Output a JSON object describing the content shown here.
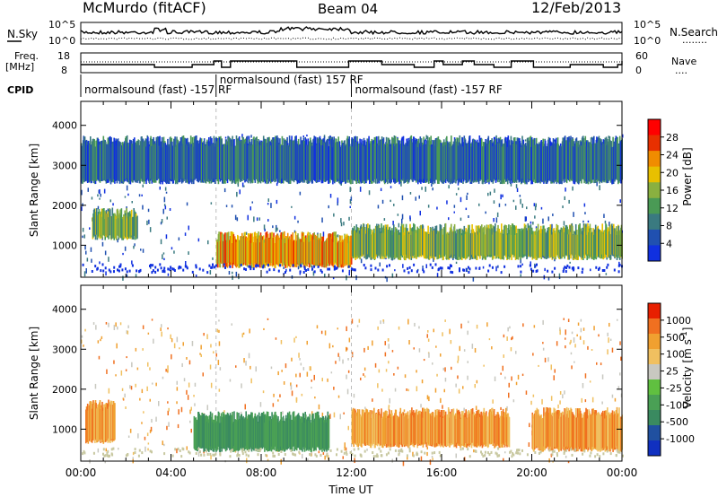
{
  "header": {
    "station": "McMurdo (fitACF)",
    "beam": "Beam 04",
    "date": "12/Feb/2013"
  },
  "noise_panel": {
    "left_label": "N.Sky",
    "right_label": "N.Search",
    "left_ticks": [
      "10^5",
      "10^0"
    ],
    "right_ticks": [
      "10^5",
      "10^0"
    ],
    "left_dotted_legend": "........"
  },
  "freq_panel": {
    "left_label_1": "Freq.",
    "left_label_2": "[MHz]",
    "left_ticks": [
      "18",
      "8"
    ],
    "right_label": "Nave",
    "right_ticks": [
      "60",
      "0"
    ],
    "right_dotted_legend": "...."
  },
  "cpid": {
    "label": "CPID",
    "segments": [
      {
        "start_h": 0,
        "end_h": 6,
        "text": "normalsound (fast) -157 RF",
        "row": 1
      },
      {
        "start_h": 6,
        "end_h": 12,
        "text": "normalsound (fast) 157 RF",
        "row": 0
      },
      {
        "start_h": 12,
        "end_h": 24,
        "text": "normalsound (fast) -157 RF",
        "row": 1
      }
    ]
  },
  "x_axis": {
    "title": "Time UT",
    "ticks": [
      "00:00",
      "04:00",
      "08:00",
      "12:00",
      "16:00",
      "20:00",
      "00:00"
    ],
    "range_h": [
      0,
      24
    ]
  },
  "chart_data": [
    {
      "type": "heatmap",
      "name": "power",
      "ylabel": "Slant Range [km]",
      "yticks": [
        1000,
        2000,
        3000,
        4000
      ],
      "ylim": [
        200,
        4600
      ],
      "colorbar": {
        "label": "Power [dB]",
        "ticks": [
          "4",
          "8",
          "12",
          "16",
          "20",
          "24",
          "28"
        ],
        "colors": [
          "#1030e0",
          "#2050b0",
          "#3a7a80",
          "#4a9a55",
          "#8ab040",
          "#e8c000",
          "#f08c00",
          "#e83000",
          "#ff0000"
        ]
      },
      "bands": [
        {
          "t0": 0.5,
          "t1": 2.5,
          "r0": 1200,
          "r1": 1800,
          "level": "medium"
        },
        {
          "t0": 6,
          "t1": 12,
          "r0": 500,
          "r1": 1200,
          "level": "high"
        },
        {
          "t0": 12,
          "t1": 24,
          "r0": 700,
          "r1": 1400,
          "level": "medium"
        },
        {
          "t0": 0,
          "t1": 24,
          "r0": 2600,
          "r1": 3600,
          "level": "low"
        }
      ]
    },
    {
      "type": "heatmap",
      "name": "velocity",
      "ylabel": "Slant Range [km]",
      "yticks": [
        1000,
        2000,
        3000,
        4000
      ],
      "ylim": [
        200,
        4600
      ],
      "colorbar": {
        "label": "Velocity [m s^-1]",
        "ticks": [
          "1000",
          "500",
          "100",
          "25",
          "-25",
          "-100",
          "-500",
          "-1000"
        ],
        "colors": [
          "#1030c0",
          "#2050a0",
          "#3a8a60",
          "#4aa055",
          "#60c040",
          "#c8c8c0",
          "#f0c060",
          "#f0a030",
          "#f07020",
          "#e82000"
        ]
      },
      "bands": [
        {
          "t0": 0.2,
          "t1": 1.5,
          "r0": 700,
          "r1": 1600,
          "dir": "away"
        },
        {
          "t0": 5,
          "t1": 11,
          "r0": 500,
          "r1": 1300,
          "dir": "toward"
        },
        {
          "t0": 12,
          "t1": 19,
          "r0": 600,
          "r1": 1400,
          "dir": "away"
        },
        {
          "t0": 20,
          "t1": 24,
          "r0": 500,
          "r1": 1400,
          "dir": "away"
        }
      ]
    }
  ]
}
